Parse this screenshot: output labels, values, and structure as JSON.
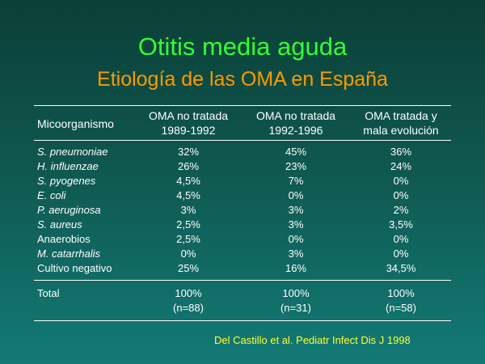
{
  "title": "Otitis media aguda",
  "subtitle": "Etiología de las OMA en España",
  "table": {
    "headers": {
      "col0": "Micoorganismo",
      "col1_line1": "OMA no tratada",
      "col1_line2": "1989-1992",
      "col2_line1": "OMA no tratada",
      "col2_line2": "1992-1996",
      "col3_line1": "OMA tratada y",
      "col3_line2": "mala evolución"
    },
    "rows": [
      {
        "organism": "S. pneumoniae",
        "v1": "32%",
        "v2": "45%",
        "v3": "36%"
      },
      {
        "organism": "H. influenzae",
        "v1": "26%",
        "v2": "23%",
        "v3": "24%"
      },
      {
        "organism": "S. pyogenes",
        "v1": "4,5%",
        "v2": "7%",
        "v3": "0%"
      },
      {
        "organism": "E. coli",
        "v1": "4,5%",
        "v2": "0%",
        "v3": "0%"
      },
      {
        "organism": "P. aeruginosa",
        "v1": "3%",
        "v2": "3%",
        "v3": "2%"
      },
      {
        "organism": "S. aureus",
        "v1": "2,5%",
        "v2": "3%",
        "v3": "3,5%"
      },
      {
        "organism": "Anaerobios",
        "v1": "2,5%",
        "v2": "0%",
        "v3": "0%"
      },
      {
        "organism": "M. catarrhalis",
        "v1": "0%",
        "v2": "3%",
        "v3": "0%"
      },
      {
        "organism": "Cultivo negativo",
        "v1": "25%",
        "v2": "16%",
        "v3": "34,5%"
      }
    ],
    "total": {
      "label": "Total",
      "v1": "100%",
      "n1": "(n=88)",
      "v2": "100%",
      "n2": "(n=31)",
      "v3": "100%",
      "n3": "(n=58)"
    }
  },
  "source": "Del Castillo et al. Pediatr Infect Dis J 1998"
}
